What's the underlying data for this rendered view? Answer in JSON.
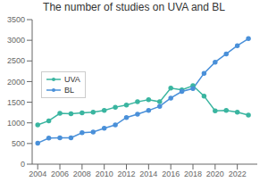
{
  "chart_data": {
    "type": "line",
    "title": "The number of studies on UVA and BL",
    "x": [
      2004,
      2005,
      2006,
      2007,
      2008,
      2009,
      2010,
      2011,
      2012,
      2013,
      2014,
      2015,
      2016,
      2017,
      2018,
      2019,
      2020,
      2021,
      2022,
      2023
    ],
    "series": [
      {
        "name": "UVA",
        "color": "#3ab5a0",
        "values": [
          950,
          1050,
          1230,
          1220,
          1240,
          1260,
          1300,
          1380,
          1430,
          1510,
          1560,
          1510,
          1840,
          1800,
          1900,
          1650,
          1290,
          1300,
          1260,
          1190
        ]
      },
      {
        "name": "BL",
        "color": "#4a90d9",
        "values": [
          510,
          630,
          640,
          640,
          760,
          780,
          870,
          950,
          1130,
          1210,
          1300,
          1400,
          1600,
          1760,
          1830,
          2200,
          2470,
          2670,
          2870,
          3040
        ]
      }
    ],
    "xlim": [
      2003.5,
      2023.8
    ],
    "xticks": [
      2004,
      2006,
      2008,
      2010,
      2012,
      2014,
      2016,
      2018,
      2020,
      2022
    ],
    "ylim": [
      0,
      3500
    ],
    "yticks": [
      0,
      500,
      1000,
      1500,
      2000,
      2500,
      3000,
      3500
    ],
    "grid": false,
    "legend": "left",
    "marker": "circle"
  }
}
